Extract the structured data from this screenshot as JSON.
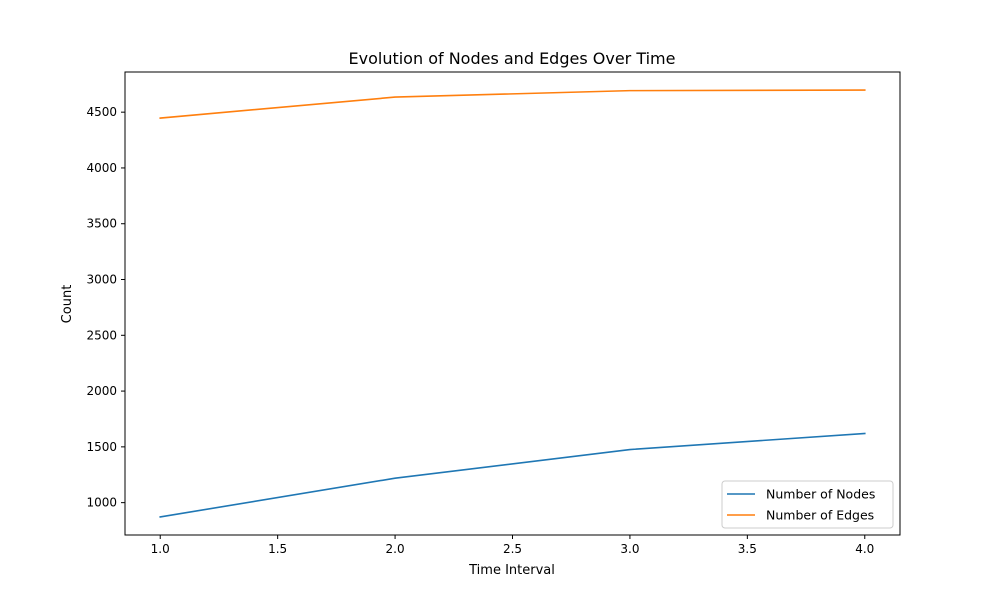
{
  "chart_data": {
    "type": "line",
    "title": "Evolution of Nodes and Edges Over Time",
    "xlabel": "Time Interval",
    "ylabel": "Count",
    "xlim": [
      0.85,
      4.15
    ],
    "ylim": [
      710,
      4860
    ],
    "x_ticks": [
      1.0,
      1.5,
      2.0,
      2.5,
      3.0,
      3.5,
      4.0
    ],
    "x_tick_labels": [
      "1.0",
      "1.5",
      "2.0",
      "2.5",
      "3.0",
      "3.5",
      "4.0"
    ],
    "y_ticks": [
      1000,
      1500,
      2000,
      2500,
      3000,
      3500,
      4000,
      4500
    ],
    "y_tick_labels": [
      "1000",
      "1500",
      "2000",
      "2500",
      "3000",
      "3500",
      "4000",
      "4500"
    ],
    "x": [
      1,
      2,
      3,
      4
    ],
    "series": [
      {
        "name": "Number of Nodes",
        "color": "#1f77b4",
        "values": [
          872,
          1219,
          1476,
          1620
        ]
      },
      {
        "name": "Number of Edges",
        "color": "#ff7f0e",
        "values": [
          4447,
          4635,
          4693,
          4698
        ]
      }
    ],
    "grid": false,
    "legend_position": "bottom-right"
  }
}
